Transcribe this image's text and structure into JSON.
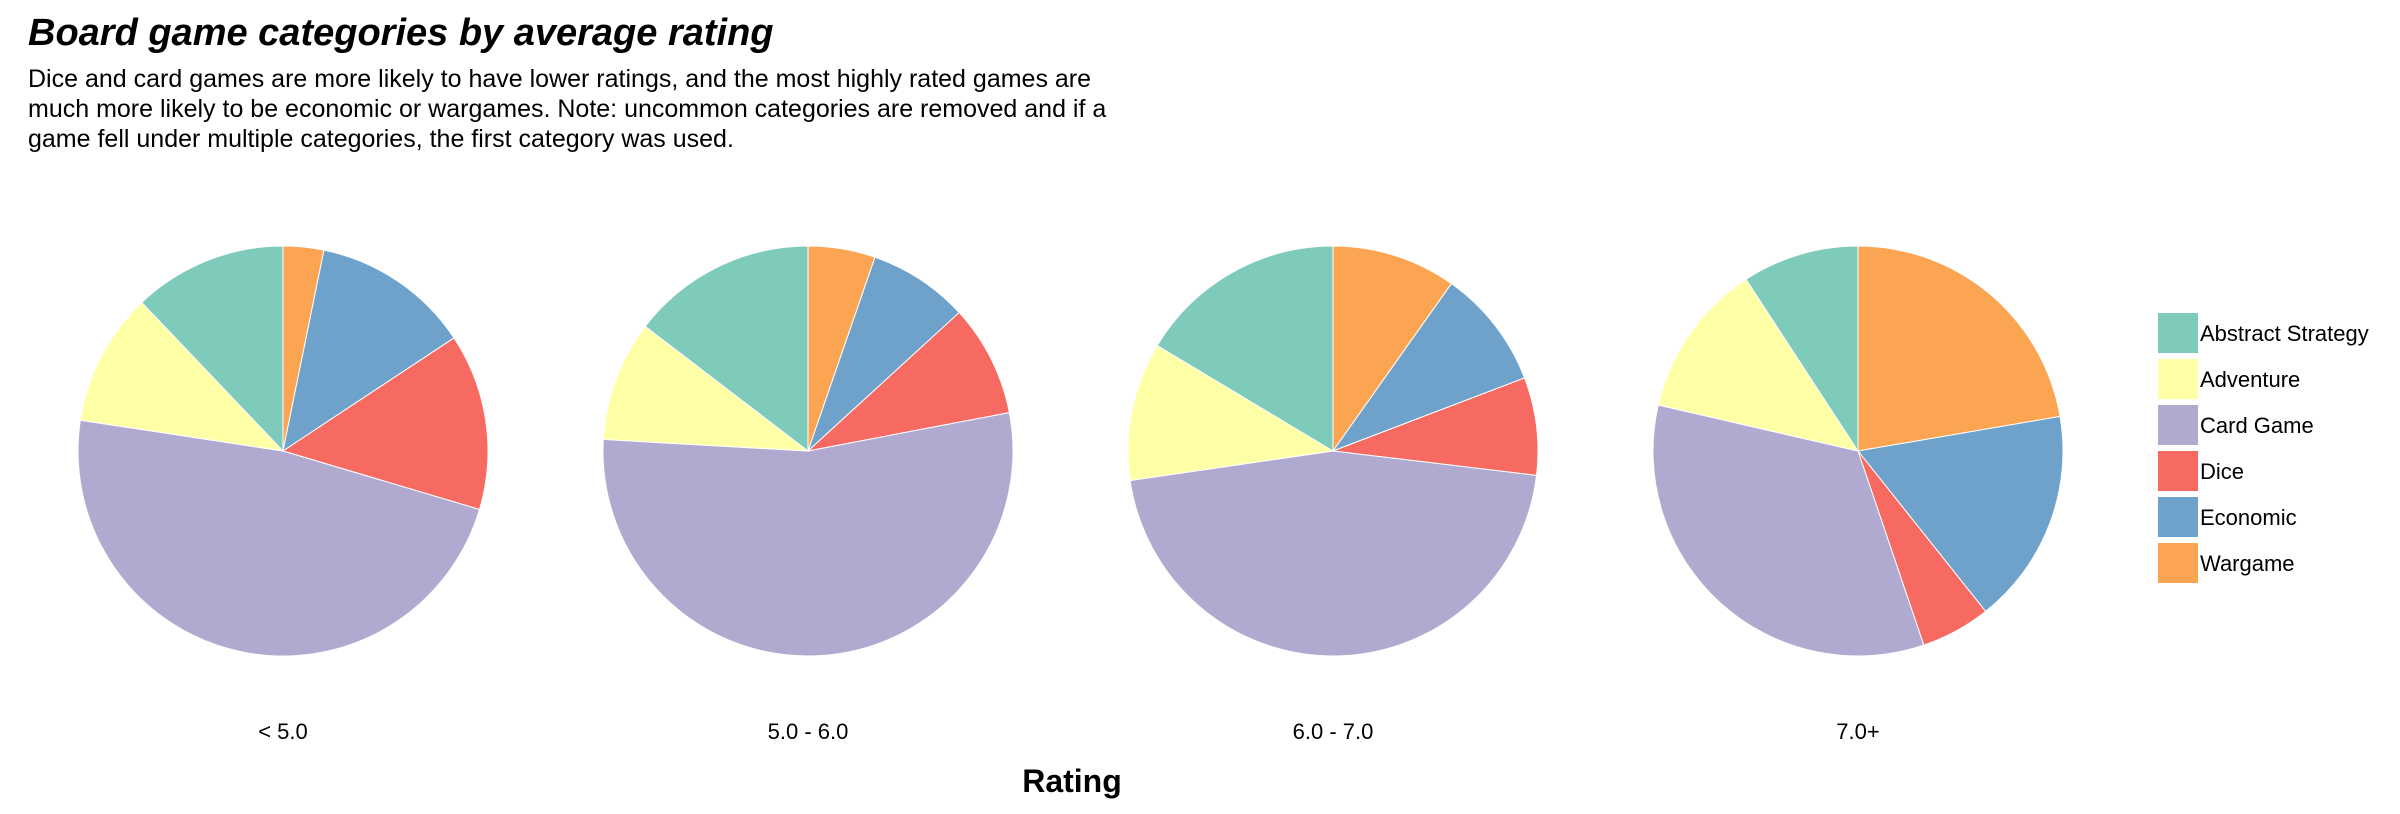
{
  "title": "Board game categories by average rating",
  "subtitle": "Dice and card games are more likely to have lower ratings, and the most highly rated games are much more likely to be economic or wargames. Note: uncommon categories are removed and if a game fell under multiple categories, the first category was used.",
  "colors": {
    "Abstract Strategy": "#7fcbbb",
    "Adventure": "#ffffa6",
    "Card Game": "#b1aad0",
    "Dice": "#f76a61",
    "Economic": "#6ea2ca",
    "Wargame": "#fba451"
  },
  "chart_data": {
    "type": "pie",
    "xlabel": "Rating",
    "legend": {
      "placement": "right",
      "entries": [
        "Abstract Strategy",
        "Adventure",
        "Card Game",
        "Dice",
        "Economic",
        "Wargame"
      ]
    },
    "categories": [
      "< 5.0",
      "5.0 - 6.0",
      "6.0 - 7.0",
      "7.0+"
    ],
    "slice_order_clockwise_from_top": [
      "Wargame",
      "Economic",
      "Dice",
      "Card Game",
      "Adventure",
      "Abstract Strategy"
    ],
    "series": [
      {
        "category": "< 5.0",
        "values": {
          "Wargame": 3.2,
          "Economic": 12.5,
          "Dice": 13.9,
          "Card Game": 47.8,
          "Adventure": 10.5,
          "Abstract Strategy": 12.1
        }
      },
      {
        "category": "5.0 - 6.0",
        "values": {
          "Wargame": 5.3,
          "Economic": 7.9,
          "Dice": 8.8,
          "Card Game": 53.9,
          "Adventure": 9.5,
          "Abstract Strategy": 14.6
        }
      },
      {
        "category": "6.0 - 7.0",
        "values": {
          "Wargame": 9.8,
          "Economic": 9.4,
          "Dice": 7.7,
          "Card Game": 45.8,
          "Adventure": 10.9,
          "Abstract Strategy": 16.4
        }
      },
      {
        "category": "7.0+",
        "values": {
          "Wargame": 22.3,
          "Economic": 17.0,
          "Dice": 5.5,
          "Card Game": 33.8,
          "Adventure": 12.2,
          "Abstract Strategy": 9.2
        }
      }
    ]
  }
}
